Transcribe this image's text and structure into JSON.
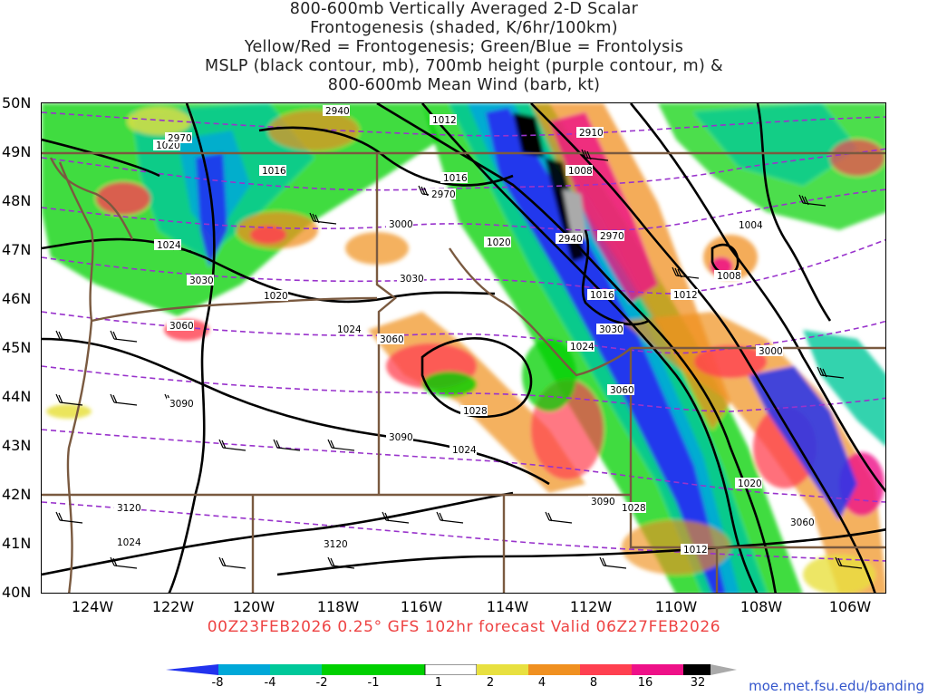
{
  "title_lines": [
    "800-600mb Vertically Averaged 2-D Scalar",
    "Frontogenesis (shaded, K/6hr/100km)",
    "Yellow/Red = Frontogenesis;  Green/Blue = Frontolysis",
    "MSLP (black contour, mb), 700mb height (purple contour, m) &",
    "800-600mb Mean Wind (barb, kt)"
  ],
  "lat_labels": [
    "50N",
    "49N",
    "48N",
    "47N",
    "46N",
    "45N",
    "44N",
    "43N",
    "42N",
    "41N",
    "40N"
  ],
  "lon_labels": [
    "124W",
    "122W",
    "120W",
    "118W",
    "116W",
    "114W",
    "112W",
    "110W",
    "108W",
    "106W"
  ],
  "footer": "00Z23FEB2026 0.25° GFS 102hr forecast Valid 06Z27FEB2026",
  "colorbar": {
    "labels": [
      "-8",
      "-4",
      "-2",
      "-1",
      "1",
      "2",
      "4",
      "8",
      "16",
      "32"
    ],
    "colors": [
      "#2233ee",
      "#00a8d8",
      "#00c89a",
      "#00d000",
      "#ffffff",
      "#e8e040",
      "#f09020",
      "#ff4050",
      "#ee1188",
      "#000000",
      "#aaaaaa"
    ]
  },
  "credit": "moe.met.fsu.edu/banding",
  "mslp_labels": [
    "1020",
    "1016",
    "1024",
    "1020",
    "1016",
    "1012",
    "1008",
    "1020",
    "1016",
    "1012",
    "1008",
    "1004",
    "1024",
    "1028",
    "1024",
    "1020",
    "1028",
    "1024",
    "1024",
    "1012"
  ],
  "height_labels": [
    "2940",
    "2970",
    "2910",
    "2970",
    "3000",
    "3030",
    "3060",
    "3090",
    "3120",
    "3120",
    "3090",
    "3060",
    "3030",
    "3000",
    "2940",
    "2970",
    "3030",
    "3060",
    "3090",
    "3060"
  ],
  "map_legend": {
    "frontogenesis_colors": [
      "#e8e040",
      "#f09020",
      "#ff4050",
      "#ee1188",
      "#000000"
    ],
    "frontolysis_colors": [
      "#00d000",
      "#00c89a",
      "#00a8d8",
      "#2233ee"
    ],
    "mslp_color": "#000000",
    "height_color": "#9933cc",
    "border_color": "#7a5a40"
  }
}
